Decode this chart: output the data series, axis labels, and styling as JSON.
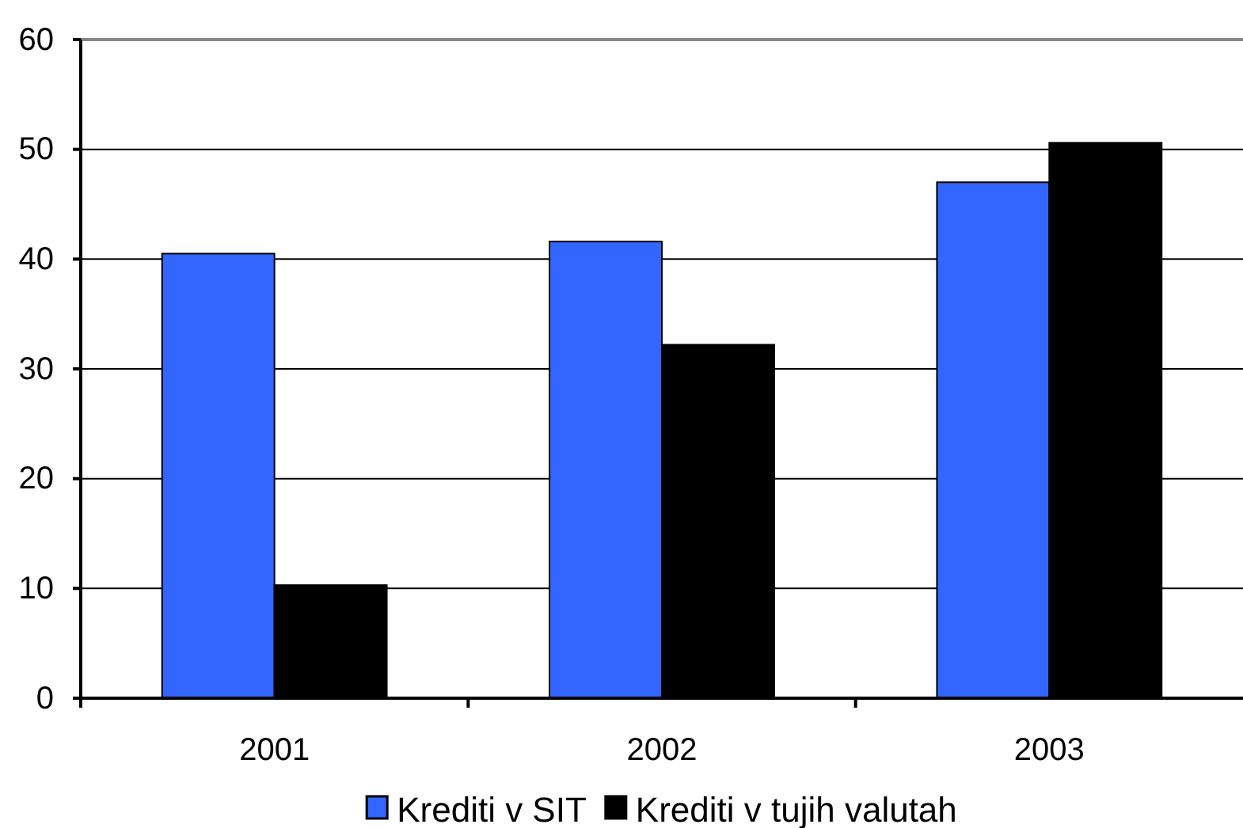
{
  "chart_data": {
    "type": "bar",
    "categories": [
      "2001",
      "2002",
      "2003"
    ],
    "series": [
      {
        "name": "Krediti v SIT",
        "color": "#3366ff",
        "values": [
          40.5,
          41.6,
          47.0
        ]
      },
      {
        "name": "Krediti v tujih valutah",
        "color": "#000000",
        "values": [
          10.3,
          32.2,
          50.6
        ]
      }
    ],
    "ylim": [
      0,
      60
    ],
    "yticks": [
      0,
      10,
      20,
      30,
      40,
      50,
      60
    ],
    "grid": "y",
    "legend": "bottom"
  }
}
